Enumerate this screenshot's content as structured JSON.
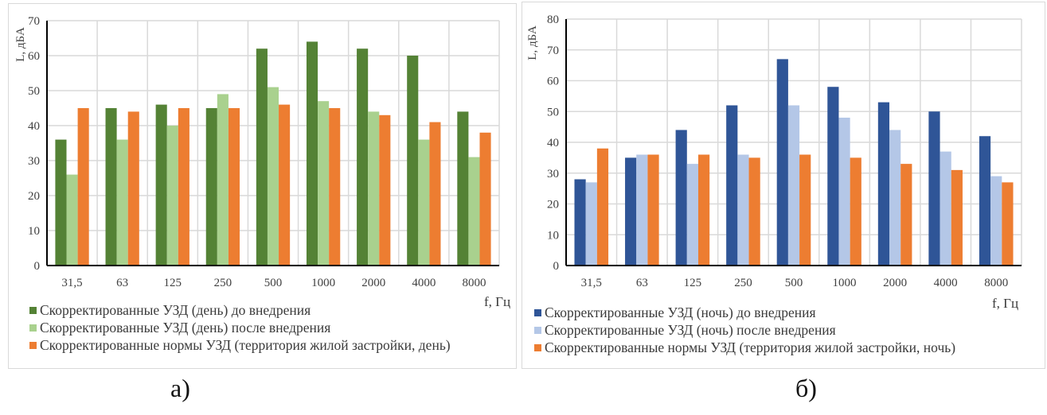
{
  "chart_data": [
    {
      "type": "bar",
      "id": "a",
      "ylabel": "L, дБА",
      "xlabel": "f, Гц",
      "ylim": [
        0,
        70
      ],
      "yticks": [
        "0",
        "10",
        "20",
        "30",
        "40",
        "50",
        "60",
        "70"
      ],
      "categories": [
        "31,5",
        "63",
        "125",
        "250",
        "500",
        "1000",
        "2000",
        "4000",
        "8000"
      ],
      "grid": true,
      "legend_position": "bottom-left",
      "series": [
        {
          "name": "Скорректированные УЗД (день) до внедрения",
          "color": "#548235",
          "values": [
            36,
            45,
            46,
            45,
            62,
            64,
            62,
            60,
            44
          ]
        },
        {
          "name": "Скорректированные УЗД (день) после внедрения",
          "color": "#A9D18E",
          "values": [
            26,
            36,
            40,
            49,
            51,
            47,
            44,
            36,
            31
          ]
        },
        {
          "name": "Скорректированные нормы УЗД (территория жилой застройки, день)",
          "color": "#ED7D31",
          "values": [
            45,
            44,
            45,
            45,
            46,
            45,
            43,
            41,
            38
          ]
        }
      ],
      "caption": "а)"
    },
    {
      "type": "bar",
      "id": "b",
      "ylabel": "L, дБА",
      "xlabel": "f, Гц",
      "ylim": [
        0,
        80
      ],
      "yticks": [
        "0",
        "10",
        "20",
        "30",
        "40",
        "50",
        "60",
        "70",
        "80"
      ],
      "categories": [
        "31,5",
        "63",
        "125",
        "250",
        "500",
        "1000",
        "2000",
        "4000",
        "8000"
      ],
      "grid": true,
      "legend_position": "bottom-left",
      "series": [
        {
          "name": "Скорректированные УЗД (ночь) до внедрения",
          "color": "#2F5597",
          "values": [
            28,
            35,
            44,
            52,
            67,
            58,
            53,
            50,
            42
          ]
        },
        {
          "name": "Скорректированные УЗД (ночь) после внедрения",
          "color": "#B4C7E7",
          "values": [
            27,
            36,
            33,
            36,
            52,
            48,
            44,
            37,
            29
          ]
        },
        {
          "name": "Скорректированные нормы УЗД (территория жилой застройки, ночь)",
          "color": "#ED7D31",
          "values": [
            38,
            36,
            36,
            35,
            36,
            35,
            33,
            31,
            27
          ]
        }
      ],
      "caption": "б)"
    }
  ]
}
